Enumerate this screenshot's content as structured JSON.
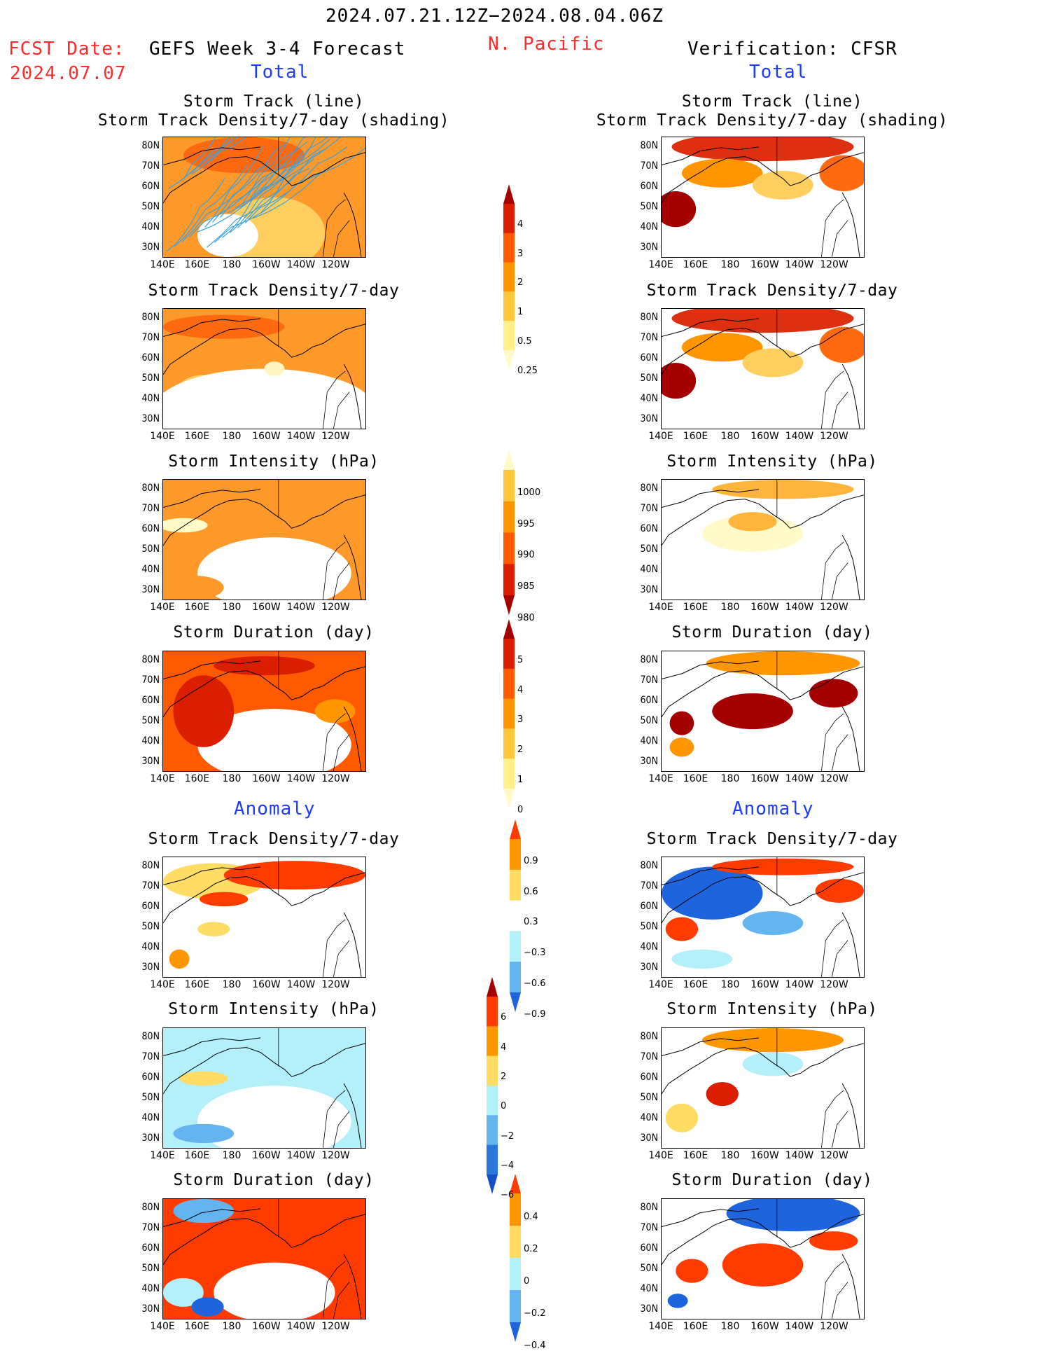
{
  "header": {
    "date_range": "2024.07.21.12Z−2024.08.04.06Z",
    "region": "N. Pacific",
    "fcst_date_label": "FCST Date:",
    "fcst_date_value": "2024.07.07",
    "left_title": "GEFS Week 3-4 Forecast",
    "right_title": "Verification: CFSR",
    "total_label_left": "Total",
    "total_label_right": "Total",
    "anomaly_label_left": "Anomaly",
    "anomaly_label_right": "Anomaly"
  },
  "panel_titles": {
    "track": "Storm Track (line)\nStorm Track Density/7-day (shading)",
    "density": "Storm Track Density/7-day",
    "intensity": "Storm Intensity (hPa)",
    "duration": "Storm Duration (day)"
  },
  "axes": {
    "y_ticks": [
      "80N",
      "70N",
      "60N",
      "50N",
      "40N",
      "30N"
    ],
    "x_ticks": [
      "140E",
      "160E",
      "180",
      "160W",
      "140W",
      "120W"
    ]
  },
  "colorbars": {
    "density_total": {
      "labels": [
        "4",
        "3",
        "2",
        "1",
        "0.5",
        "0.25"
      ],
      "colors": [
        "#a50000",
        "#dc1e00",
        "#ff5a00",
        "#ff9600",
        "#ffc83c",
        "#fff08c",
        "#fffac8"
      ]
    },
    "intensity_total": {
      "labels": [
        "1000",
        "995",
        "990",
        "985",
        "980"
      ],
      "colors": [
        "#fffac8",
        "#ffc83c",
        "#ff9600",
        "#ff5a00",
        "#dc1e00",
        "#a50000"
      ]
    },
    "duration_total": {
      "labels": [
        "5",
        "4",
        "3",
        "2",
        "1",
        "0"
      ],
      "colors": [
        "#a50000",
        "#dc1e00",
        "#ff5a00",
        "#ff9600",
        "#ffc83c",
        "#fff08c",
        "#fffac8"
      ]
    },
    "density_anom": {
      "labels": [
        "0.9",
        "0.6",
        "0.3",
        "−0.3",
        "−0.6",
        "−0.9"
      ],
      "colors": [
        "#ff3c00",
        "#ff9600",
        "#ffdc64",
        "#ffffff",
        "#b4f0fa",
        "#64b4f0",
        "#1e64dc"
      ]
    },
    "intensity_anom": {
      "labels": [
        "6",
        "4",
        "2",
        "0",
        "−2",
        "−4",
        "−6"
      ],
      "colors": [
        "#a50000",
        "#ff3c00",
        "#ff9600",
        "#ffdc64",
        "#b4f0fa",
        "#64b4f0",
        "#2878dc",
        "#1450c8"
      ]
    },
    "duration_anom": {
      "labels": [
        "0.4",
        "0.2",
        "0",
        "−0.2",
        "−0.4"
      ],
      "colors": [
        "#ff3c00",
        "#ff9600",
        "#ffdc64",
        "#b4f0fa",
        "#64b4f0",
        "#1e64dc"
      ]
    }
  },
  "panels": [
    {
      "id": "fc-track",
      "base": "#ff9a2a",
      "blobs": [
        [
          "#ffd060",
          0.55,
          0.8,
          0.25,
          0.3
        ],
        [
          "#ffffff",
          0.32,
          0.82,
          0.15,
          0.18
        ],
        [
          "#ff6a10",
          0.4,
          0.15,
          0.3,
          0.15
        ]
      ],
      "tracks": true
    },
    {
      "id": "vf-track",
      "base": "#ffffff",
      "blobs": [
        [
          "#dc3010",
          0.5,
          0.08,
          0.45,
          0.12
        ],
        [
          "#ff9600",
          0.3,
          0.3,
          0.2,
          0.12
        ],
        [
          "#a50000",
          0.07,
          0.6,
          0.1,
          0.15
        ],
        [
          "#ff6a10",
          0.9,
          0.3,
          0.12,
          0.15
        ],
        [
          "#ffd060",
          0.6,
          0.4,
          0.15,
          0.12
        ]
      ],
      "tracks": false
    },
    {
      "id": "fc-density",
      "base": "#ff9a2a",
      "blobs": [
        [
          "#ffd060",
          0.2,
          0.75,
          0.15,
          0.2
        ],
        [
          "#ffffff",
          0.5,
          0.85,
          0.55,
          0.35
        ],
        [
          "#ff6a10",
          0.3,
          0.15,
          0.3,
          0.1
        ],
        [
          "#fff5c0",
          0.55,
          0.5,
          0.05,
          0.06
        ]
      ],
      "tracks": false
    },
    {
      "id": "vf-density",
      "base": "#ffffff",
      "blobs": [
        [
          "#dc3010",
          0.5,
          0.08,
          0.45,
          0.12
        ],
        [
          "#ff9600",
          0.3,
          0.32,
          0.2,
          0.12
        ],
        [
          "#a50000",
          0.07,
          0.6,
          0.1,
          0.15
        ],
        [
          "#ff6a10",
          0.9,
          0.3,
          0.12,
          0.15
        ],
        [
          "#ffd060",
          0.55,
          0.45,
          0.15,
          0.12
        ]
      ],
      "tracks": false
    },
    {
      "id": "fc-intensity",
      "base": "#ff9a2a",
      "blobs": [
        [
          "#ffffff",
          0.55,
          0.78,
          0.38,
          0.3
        ],
        [
          "#fffac8",
          0.1,
          0.38,
          0.12,
          0.06
        ],
        [
          "#ff9a2a",
          0.15,
          0.9,
          0.15,
          0.1
        ]
      ],
      "tracks": false
    },
    {
      "id": "vf-intensity",
      "base": "#ffffff",
      "blobs": [
        [
          "#ffb43c",
          0.6,
          0.08,
          0.35,
          0.08
        ],
        [
          "#fffac8",
          0.45,
          0.45,
          0.25,
          0.15
        ],
        [
          "#ffb43c",
          0.45,
          0.35,
          0.12,
          0.08
        ]
      ],
      "tracks": false
    },
    {
      "id": "fc-duration",
      "base": "#ff5a00",
      "blobs": [
        [
          "#ffffff",
          0.55,
          0.78,
          0.38,
          0.3
        ],
        [
          "#dc1e00",
          0.2,
          0.5,
          0.15,
          0.3
        ],
        [
          "#dc1e00",
          0.5,
          0.12,
          0.25,
          0.08
        ],
        [
          "#ff9600",
          0.85,
          0.5,
          0.1,
          0.1
        ]
      ],
      "tracks": false
    },
    {
      "id": "vf-duration",
      "base": "#ffffff",
      "blobs": [
        [
          "#ff9600",
          0.6,
          0.1,
          0.38,
          0.1
        ],
        [
          "#a50000",
          0.45,
          0.5,
          0.2,
          0.15
        ],
        [
          "#a50000",
          0.1,
          0.6,
          0.06,
          0.1
        ],
        [
          "#a50000",
          0.85,
          0.35,
          0.12,
          0.12
        ],
        [
          "#ff9600",
          0.1,
          0.8,
          0.06,
          0.08
        ]
      ],
      "tracks": false
    },
    {
      "id": "fc-density-anom",
      "base": "#ffffff",
      "blobs": [
        [
          "#ffdc64",
          0.25,
          0.2,
          0.25,
          0.15
        ],
        [
          "#ff3c00",
          0.65,
          0.15,
          0.35,
          0.12
        ],
        [
          "#ff3c00",
          0.3,
          0.35,
          0.12,
          0.06
        ],
        [
          "#ffdc64",
          0.25,
          0.6,
          0.08,
          0.06
        ],
        [
          "#ff9600",
          0.08,
          0.85,
          0.05,
          0.08
        ]
      ],
      "tracks": false
    },
    {
      "id": "vf-density-anom",
      "base": "#ffffff",
      "blobs": [
        [
          "#1e64dc",
          0.25,
          0.3,
          0.25,
          0.22
        ],
        [
          "#64b4f0",
          0.55,
          0.55,
          0.15,
          0.1
        ],
        [
          "#ff3c00",
          0.1,
          0.6,
          0.08,
          0.1
        ],
        [
          "#ff3c00",
          0.6,
          0.08,
          0.35,
          0.07
        ],
        [
          "#b4f0fa",
          0.2,
          0.85,
          0.15,
          0.08
        ],
        [
          "#ff3c00",
          0.88,
          0.28,
          0.12,
          0.1
        ]
      ],
      "tracks": false
    },
    {
      "id": "fc-intensity-anom",
      "base": "#b4f0fa",
      "blobs": [
        [
          "#ffffff",
          0.55,
          0.78,
          0.38,
          0.3
        ],
        [
          "#ffdc64",
          0.2,
          0.42,
          0.12,
          0.06
        ],
        [
          "#64b4f0",
          0.2,
          0.88,
          0.15,
          0.08
        ]
      ],
      "tracks": false
    },
    {
      "id": "vf-intensity-anom",
      "base": "#ffffff",
      "blobs": [
        [
          "#ff9600",
          0.55,
          0.1,
          0.35,
          0.1
        ],
        [
          "#dc1e00",
          0.3,
          0.55,
          0.08,
          0.1
        ],
        [
          "#b4f0fa",
          0.55,
          0.3,
          0.15,
          0.1
        ],
        [
          "#ffdc64",
          0.1,
          0.75,
          0.08,
          0.12
        ]
      ],
      "tracks": false
    },
    {
      "id": "fc-duration-anom",
      "base": "#ff3c00",
      "blobs": [
        [
          "#ffffff",
          0.55,
          0.78,
          0.3,
          0.25
        ],
        [
          "#64b4f0",
          0.2,
          0.1,
          0.15,
          0.1
        ],
        [
          "#b4f0fa",
          0.1,
          0.78,
          0.1,
          0.12
        ],
        [
          "#1e64dc",
          0.22,
          0.9,
          0.08,
          0.08
        ]
      ],
      "tracks": false
    },
    {
      "id": "vf-duration-anom",
      "base": "#ffffff",
      "blobs": [
        [
          "#1e64dc",
          0.65,
          0.12,
          0.33,
          0.15
        ],
        [
          "#ff3c00",
          0.5,
          0.55,
          0.2,
          0.18
        ],
        [
          "#ff3c00",
          0.15,
          0.6,
          0.08,
          0.1
        ],
        [
          "#1e64dc",
          0.08,
          0.85,
          0.05,
          0.06
        ],
        [
          "#ff3c00",
          0.85,
          0.35,
          0.12,
          0.08
        ]
      ],
      "tracks": false
    }
  ]
}
